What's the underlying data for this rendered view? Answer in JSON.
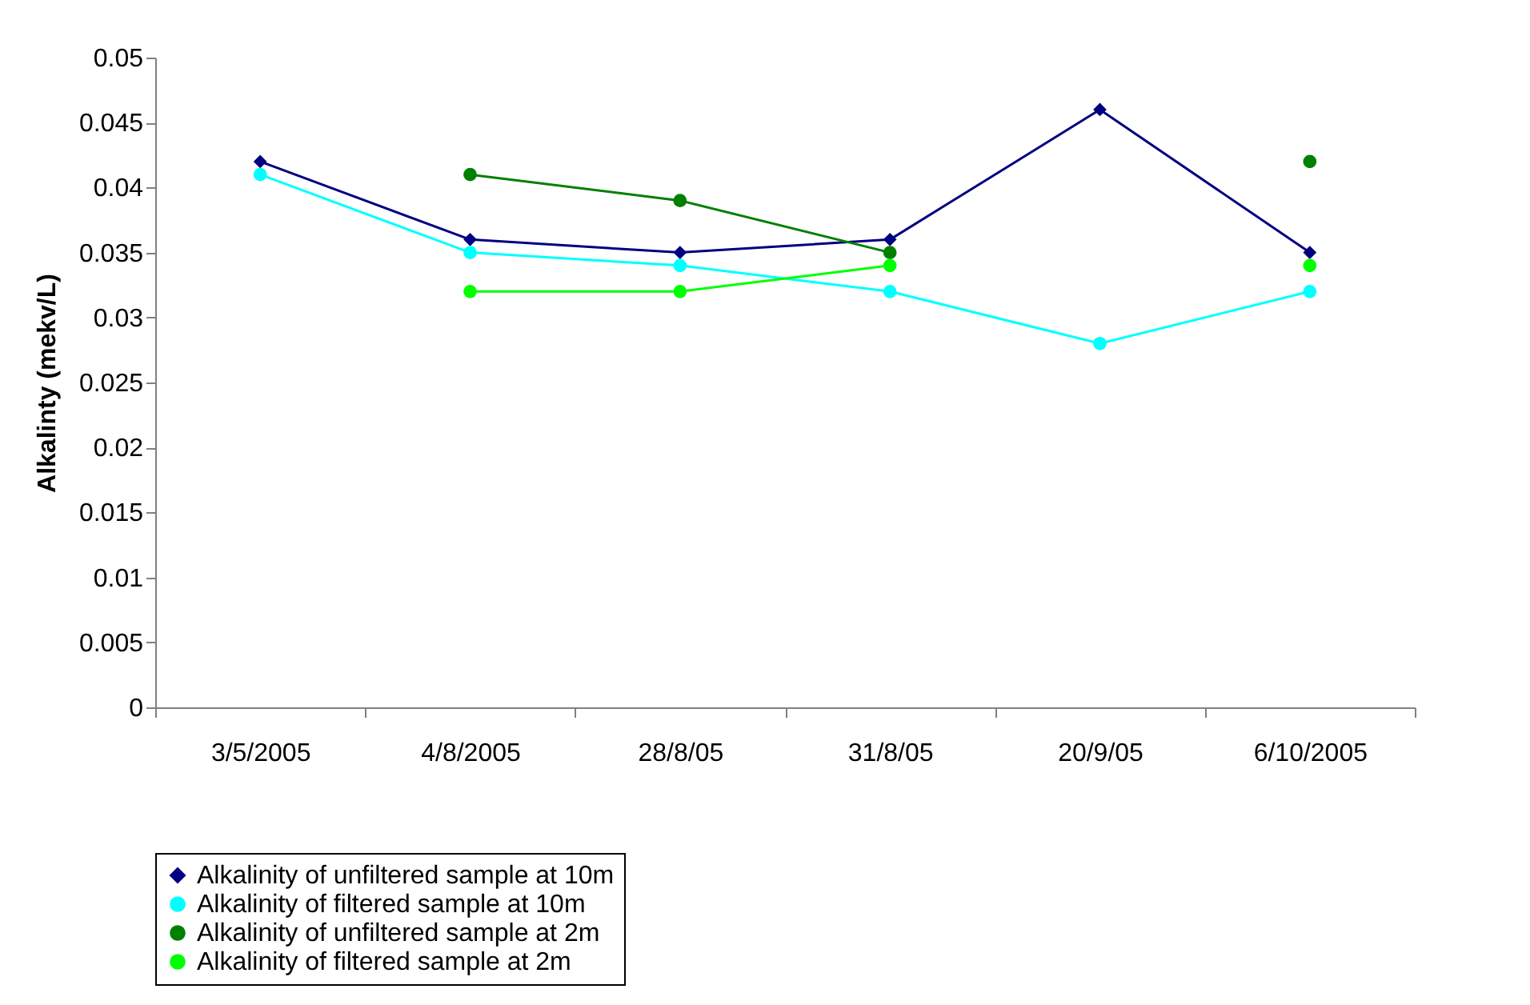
{
  "chart_data": {
    "type": "line",
    "ylabel": "Alkalinty (mekv/L)",
    "categories": [
      "3/5/2005",
      "4/8/2005",
      "28/8/05",
      "31/8/05",
      "20/9/05",
      "6/10/2005"
    ],
    "series": [
      {
        "name": "Alkalinity of unfiltered sample at 10m",
        "color": "#000080",
        "marker": "diamond",
        "values": [
          0.042,
          0.036,
          0.035,
          0.036,
          0.046,
          0.035
        ]
      },
      {
        "name": "Alkalinity of  filtered sample at 10m",
        "color": "#00ffff",
        "marker": "circle",
        "values": [
          0.041,
          0.035,
          0.034,
          0.032,
          0.028,
          0.032
        ]
      },
      {
        "name": "Alkalinity of unfiltered sample at 2m",
        "color": "#008000",
        "marker": "circle",
        "values": [
          null,
          0.041,
          0.039,
          0.035,
          null,
          0.042
        ]
      },
      {
        "name": "Alkalinity of filtered sample at 2m",
        "color": "#00ff00",
        "marker": "circle",
        "values": [
          null,
          0.032,
          0.032,
          0.034,
          null,
          0.034
        ]
      }
    ],
    "ylim": [
      0,
      0.05
    ],
    "yticks": [
      0,
      0.005,
      0.01,
      0.015,
      0.02,
      0.025,
      0.03,
      0.035,
      0.04,
      0.045,
      0.05
    ],
    "grid": false,
    "legend": "bottom"
  }
}
